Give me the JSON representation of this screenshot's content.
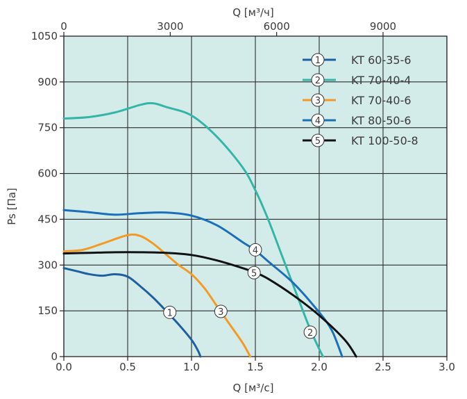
{
  "chart_data": {
    "type": "line",
    "x_bottom": {
      "label": "Q [м³/с]",
      "min": 0,
      "max": 3.0,
      "ticks": [
        "0.0",
        "0.5",
        "1.0",
        "1.5",
        "2.0",
        "2.5",
        "3.0"
      ]
    },
    "x_top": {
      "label": "Q [м³/ч]",
      "ticks": [
        "0",
        "3000",
        "6000",
        "9000"
      ]
    },
    "y": {
      "label": "Ps [Па]",
      "min": 0,
      "max": 1050,
      "ticks": [
        "0",
        "150",
        "300",
        "450",
        "600",
        "750",
        "900",
        "1050"
      ]
    },
    "grid": true,
    "legend_position": "top-right",
    "colors": {
      "plot_background": "#d3ecea",
      "grid": "#2b2b2b",
      "axis": "#222222"
    },
    "series": [
      {
        "marker": "1",
        "name": "KT 60-35-6",
        "color": "#1f5fa0",
        "marker_at": [
          0.83,
          145
        ],
        "points": [
          [
            0.0,
            290
          ],
          [
            0.1,
            280
          ],
          [
            0.2,
            270
          ],
          [
            0.3,
            265
          ],
          [
            0.4,
            270
          ],
          [
            0.5,
            262
          ],
          [
            0.6,
            230
          ],
          [
            0.7,
            193
          ],
          [
            0.8,
            150
          ],
          [
            0.9,
            105
          ],
          [
            1.0,
            55
          ],
          [
            1.05,
            20
          ],
          [
            1.07,
            0
          ]
        ]
      },
      {
        "marker": "2",
        "name": "KT 70-40-4",
        "color": "#35b5a8",
        "marker_at": [
          1.93,
          80
        ],
        "points": [
          [
            0.0,
            780
          ],
          [
            0.2,
            785
          ],
          [
            0.4,
            800
          ],
          [
            0.6,
            825
          ],
          [
            0.7,
            830
          ],
          [
            0.8,
            818
          ],
          [
            1.0,
            790
          ],
          [
            1.2,
            720
          ],
          [
            1.4,
            620
          ],
          [
            1.5,
            545
          ],
          [
            1.6,
            450
          ],
          [
            1.7,
            340
          ],
          [
            1.8,
            230
          ],
          [
            1.9,
            120
          ],
          [
            1.95,
            70
          ],
          [
            2.0,
            25
          ],
          [
            2.03,
            0
          ]
        ]
      },
      {
        "marker": "3",
        "name": "KT 70-40-6",
        "color": "#f39a24",
        "marker_at": [
          1.23,
          148
        ],
        "points": [
          [
            0.0,
            345
          ],
          [
            0.15,
            350
          ],
          [
            0.3,
            370
          ],
          [
            0.5,
            398
          ],
          [
            0.6,
            395
          ],
          [
            0.7,
            370
          ],
          [
            0.8,
            335
          ],
          [
            0.9,
            300
          ],
          [
            1.0,
            270
          ],
          [
            1.1,
            225
          ],
          [
            1.2,
            165
          ],
          [
            1.3,
            105
          ],
          [
            1.4,
            45
          ],
          [
            1.46,
            0
          ]
        ]
      },
      {
        "marker": "4",
        "name": "KT 80-50-6",
        "color": "#1a6fb8",
        "marker_at": [
          1.5,
          350
        ],
        "points": [
          [
            0.0,
            480
          ],
          [
            0.2,
            473
          ],
          [
            0.4,
            465
          ],
          [
            0.6,
            470
          ],
          [
            0.8,
            472
          ],
          [
            1.0,
            462
          ],
          [
            1.2,
            430
          ],
          [
            1.4,
            375
          ],
          [
            1.5,
            348
          ],
          [
            1.6,
            312
          ],
          [
            1.8,
            240
          ],
          [
            2.0,
            145
          ],
          [
            2.1,
            85
          ],
          [
            2.18,
            0
          ]
        ]
      },
      {
        "marker": "5",
        "name": "KT 100-50-8",
        "color": "#111111",
        "marker_at": [
          1.49,
          275
        ],
        "points": [
          [
            0.0,
            338
          ],
          [
            0.2,
            340
          ],
          [
            0.4,
            342
          ],
          [
            0.6,
            342
          ],
          [
            0.8,
            340
          ],
          [
            1.0,
            333
          ],
          [
            1.2,
            315
          ],
          [
            1.4,
            290
          ],
          [
            1.5,
            275
          ],
          [
            1.6,
            255
          ],
          [
            1.8,
            200
          ],
          [
            2.0,
            135
          ],
          [
            2.2,
            55
          ],
          [
            2.29,
            0
          ]
        ]
      }
    ]
  }
}
